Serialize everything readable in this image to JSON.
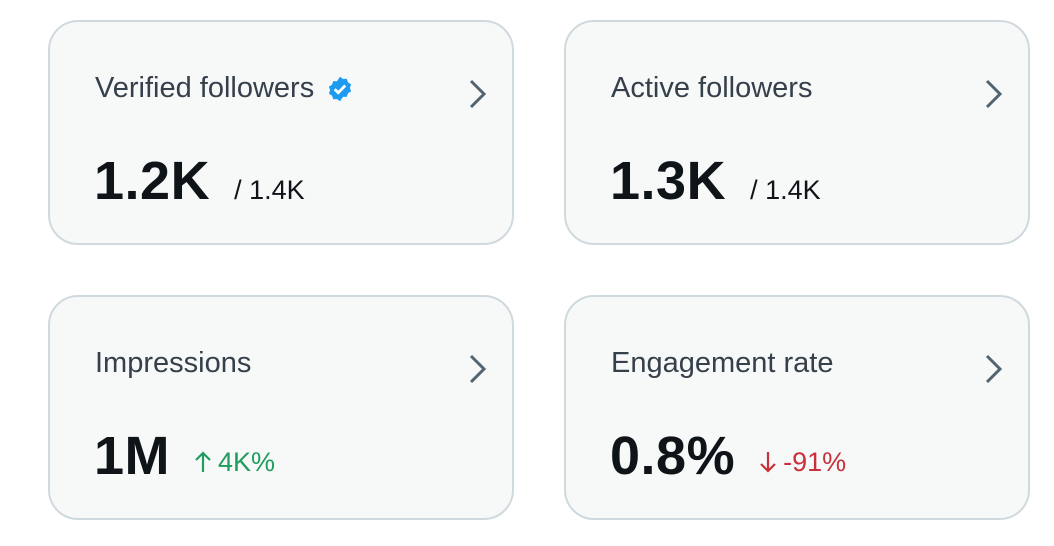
{
  "cards": [
    {
      "title": "Verified followers",
      "value": "1.2K",
      "secondary": "/ 1.4K"
    },
    {
      "title": "Active followers",
      "value": "1.3K",
      "secondary": "/ 1.4K"
    },
    {
      "title": "Impressions",
      "value": "1M",
      "secondary": "4K%"
    },
    {
      "title": "Engagement rate",
      "value": "0.8%",
      "secondary": "-91%"
    }
  ]
}
